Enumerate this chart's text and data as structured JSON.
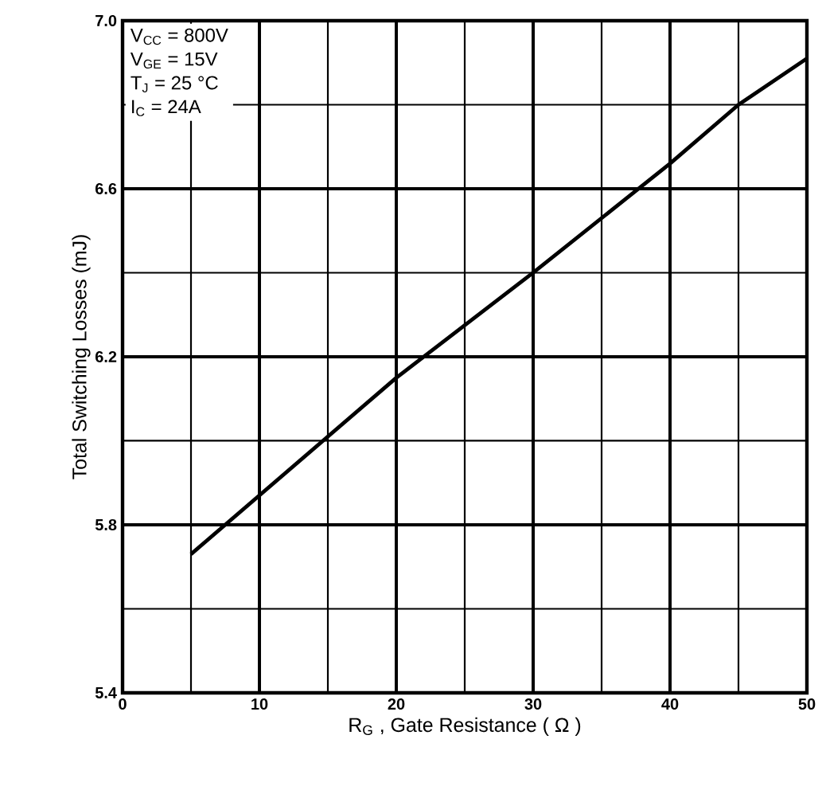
{
  "chart_data": {
    "type": "line",
    "xlabel": "R$_{G}$ , Gate Resistance ( Ω )",
    "ylabel": "Total Switching Losses (mJ)",
    "annotations": [
      "V$_{CC}$ = 800V",
      "V$_{GE}$ = 15V",
      "T$_{J}$    = 25  °C",
      "I$_{C}$    = 24A"
    ],
    "x": [
      5,
      10,
      20,
      30,
      40,
      45,
      50
    ],
    "series": [
      {
        "color": "#000000",
        "values": [
          5.73,
          5.87,
          6.15,
          6.4,
          6.66,
          6.8,
          6.91
        ]
      }
    ],
    "xlim": [
      0,
      50
    ],
    "ylim": [
      5.4,
      7.0
    ],
    "xticks": [
      0,
      {
        "value": 5,
        "label": null
      },
      10,
      {
        "value": 15,
        "label": null
      },
      20,
      {
        "value": 25,
        "label": null
      },
      30,
      {
        "value": 35,
        "label": null
      },
      40,
      {
        "value": 45,
        "label": null
      },
      50
    ],
    "yticks": [
      5.4,
      {
        "value": 5.6,
        "label": null
      },
      5.8,
      {
        "value": 6.0,
        "label": null
      },
      6.2,
      {
        "value": 6.4,
        "label": null
      },
      6.6,
      {
        "value": 6.8,
        "label": null
      },
      {
        "value": 7.0,
        "label": "7.0"
      }
    ],
    "grid": true,
    "marker": "none",
    "line_style": "solid"
  }
}
